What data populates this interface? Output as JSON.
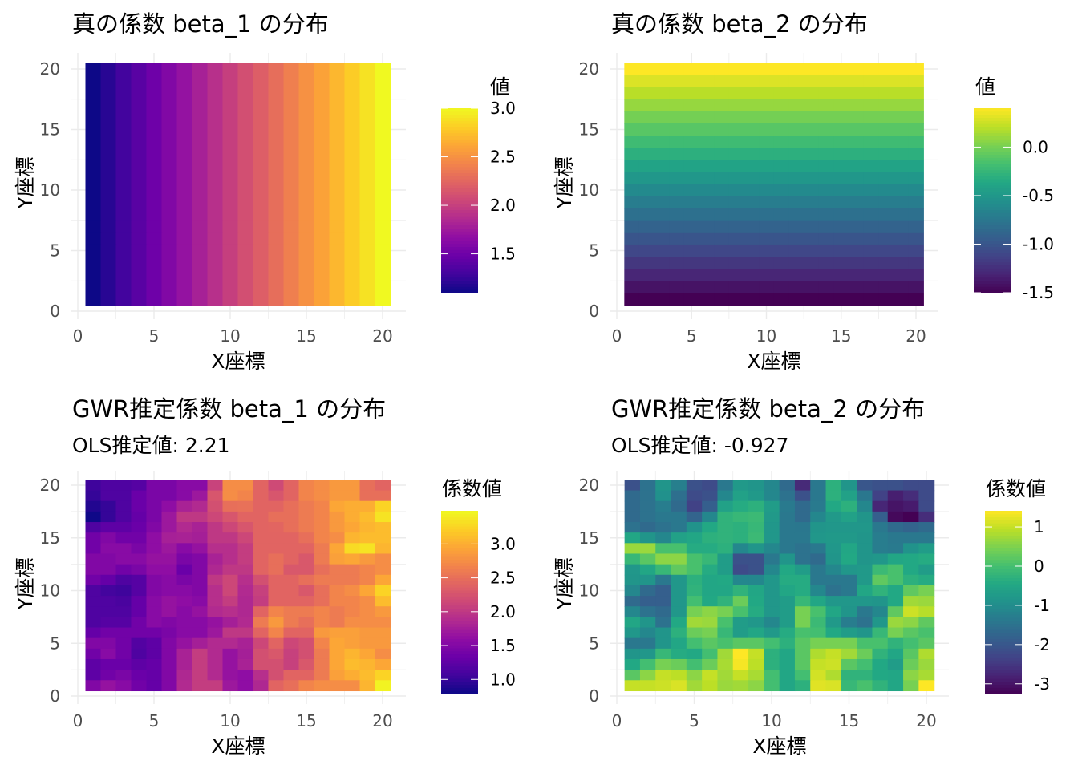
{
  "chart_data": [
    {
      "type": "heatmap",
      "title": "真の係数 beta_1 の分布",
      "xlabel": "X座標",
      "ylabel": "Y座標",
      "xticks": [
        0,
        5,
        10,
        15,
        20
      ],
      "yticks": [
        0,
        5,
        10,
        15,
        20
      ],
      "xlim": [
        0,
        20
      ],
      "ylim": [
        0,
        20
      ],
      "legend_title": "値",
      "legend_ticks": [
        1.5,
        2.0,
        2.5,
        3.0
      ],
      "legend_tick_labels": [
        "1.5",
        "2.0",
        "2.5",
        "3.0"
      ],
      "colormap": "plasma",
      "color_range": [
        1.1,
        3.0
      ],
      "x": [
        1,
        2,
        3,
        4,
        5,
        6,
        7,
        8,
        9,
        10,
        11,
        12,
        13,
        14,
        15,
        16,
        17,
        18,
        19,
        20
      ],
      "y": [
        20,
        19,
        18,
        17,
        16,
        15,
        14,
        13,
        12,
        11,
        10,
        9,
        8,
        7,
        6,
        5,
        4,
        3,
        2,
        1
      ],
      "z_by_x": [
        1.1,
        1.2,
        1.3,
        1.4,
        1.5,
        1.6,
        1.7,
        1.8,
        1.9,
        2.0,
        2.1,
        2.2,
        2.3,
        2.4,
        2.5,
        2.6,
        2.7,
        2.8,
        2.9,
        3.0
      ],
      "grid": true,
      "legend": "right"
    },
    {
      "type": "heatmap",
      "title": "真の係数 beta_2 の分布",
      "xlabel": "X座標",
      "ylabel": "Y座標",
      "xticks": [
        0,
        5,
        10,
        15,
        20
      ],
      "yticks": [
        0,
        5,
        10,
        15,
        20
      ],
      "xlim": [
        0,
        20
      ],
      "ylim": [
        0,
        20
      ],
      "legend_title": "値",
      "legend_ticks": [
        -1.5,
        -1.0,
        -0.5,
        0.0
      ],
      "legend_tick_labels": [
        "-1.5",
        "-1.0",
        "-0.5",
        "0.0"
      ],
      "colormap": "viridis",
      "color_range": [
        -1.5,
        0.4
      ],
      "x": [
        1,
        2,
        3,
        4,
        5,
        6,
        7,
        8,
        9,
        10,
        11,
        12,
        13,
        14,
        15,
        16,
        17,
        18,
        19,
        20
      ],
      "y": [
        20,
        19,
        18,
        17,
        16,
        15,
        14,
        13,
        12,
        11,
        10,
        9,
        8,
        7,
        6,
        5,
        4,
        3,
        2,
        1
      ],
      "z_by_y": [
        -1.5,
        -1.4,
        -1.3,
        -1.2,
        -1.1,
        -1.0,
        -0.9,
        -0.8,
        -0.7,
        -0.6,
        -0.5,
        -0.4,
        -0.3,
        -0.2,
        -0.1,
        0.0,
        0.1,
        0.2,
        0.3,
        0.4
      ],
      "grid": true,
      "legend": "right"
    },
    {
      "type": "heatmap",
      "title": "GWR推定係数 beta_1 の分布",
      "subtitle": "OLS推定値: 2.21",
      "xlabel": "X座標",
      "ylabel": "Y座標",
      "xticks": [
        0,
        5,
        10,
        15,
        20
      ],
      "yticks": [
        0,
        5,
        10,
        15,
        20
      ],
      "xlim": [
        0,
        20
      ],
      "ylim": [
        0,
        20
      ],
      "legend_title": "係数値",
      "legend_ticks": [
        1.0,
        1.5,
        2.0,
        2.5,
        3.0
      ],
      "legend_tick_labels": [
        "1.0",
        "1.5",
        "2.0",
        "2.5",
        "3.0"
      ],
      "colormap": "plasma",
      "color_range": [
        0.79,
        3.49
      ],
      "x": [
        1,
        2,
        3,
        4,
        5,
        6,
        7,
        8,
        9,
        10,
        11,
        12,
        13,
        14,
        15,
        16,
        17,
        18,
        19,
        20
      ],
      "y": [
        20,
        19,
        18,
        17,
        16,
        15,
        14,
        13,
        12,
        11,
        10,
        9,
        8,
        7,
        6,
        5,
        4,
        3,
        2,
        1
      ],
      "z": [
        [
          1.05,
          1.15,
          1.15,
          1.2,
          1.45,
          1.45,
          1.55,
          1.55,
          2.1,
          2.75,
          2.75,
          2.41,
          2.17,
          2.41,
          2.68,
          2.75,
          2.85,
          2.85,
          2.5,
          2.41
        ],
        [
          1.0,
          1.15,
          1.15,
          1.33,
          1.45,
          1.45,
          1.55,
          1.7,
          2.28,
          2.75,
          2.68,
          2.41,
          2.28,
          2.41,
          2.68,
          2.75,
          2.85,
          2.85,
          2.5,
          2.5
        ],
        [
          0.9,
          1.0,
          1.15,
          1.33,
          1.45,
          1.6,
          1.8,
          1.87,
          2.22,
          2.5,
          2.52,
          2.41,
          2.41,
          2.5,
          2.6,
          2.68,
          2.95,
          3.0,
          3.0,
          3.25
        ],
        [
          0.8,
          1.0,
          1.15,
          1.3,
          1.45,
          1.7,
          2.0,
          2.0,
          2.14,
          2.28,
          2.41,
          2.41,
          2.5,
          2.5,
          2.6,
          2.68,
          2.85,
          3.0,
          3.1,
          3.35
        ],
        [
          1.15,
          1.25,
          1.25,
          1.33,
          1.5,
          1.7,
          1.87,
          1.8,
          2.0,
          2.14,
          2.28,
          2.41,
          2.42,
          2.5,
          2.6,
          2.68,
          2.85,
          2.95,
          3.05,
          3.1
        ],
        [
          1.38,
          1.5,
          1.38,
          1.38,
          1.6,
          1.78,
          1.8,
          1.77,
          2.0,
          2.0,
          2.14,
          2.41,
          2.41,
          2.41,
          2.5,
          2.68,
          2.75,
          3.05,
          3.1,
          3.1
        ],
        [
          1.38,
          1.55,
          1.55,
          1.45,
          1.6,
          1.7,
          1.55,
          1.65,
          1.92,
          1.92,
          2.05,
          2.41,
          2.41,
          2.41,
          2.41,
          2.6,
          2.95,
          3.3,
          3.35,
          3.05
        ],
        [
          1.5,
          1.5,
          1.55,
          1.55,
          1.65,
          1.65,
          1.45,
          1.5,
          1.8,
          1.92,
          2.05,
          2.41,
          2.5,
          2.41,
          2.3,
          2.6,
          2.9,
          2.95,
          2.85,
          2.75
        ],
        [
          1.5,
          1.5,
          1.38,
          1.45,
          1.6,
          1.6,
          1.33,
          1.5,
          1.85,
          2.0,
          2.0,
          2.41,
          2.5,
          2.3,
          2.3,
          2.5,
          2.6,
          2.6,
          2.68,
          2.75
        ],
        [
          1.38,
          1.3,
          1.15,
          1.2,
          1.5,
          1.55,
          1.45,
          1.5,
          2.0,
          2.14,
          1.92,
          2.22,
          2.41,
          2.41,
          2.5,
          2.6,
          2.6,
          2.6,
          2.68,
          2.95
        ],
        [
          1.15,
          1.08,
          1.05,
          1.2,
          1.5,
          1.55,
          1.55,
          1.5,
          1.92,
          2.14,
          1.87,
          2.08,
          2.41,
          2.41,
          2.3,
          2.5,
          2.68,
          2.75,
          2.95,
          3.25
        ],
        [
          1.15,
          1.15,
          1.12,
          1.3,
          1.55,
          1.65,
          1.6,
          1.55,
          1.92,
          2.05,
          1.85,
          2.05,
          2.41,
          2.41,
          2.41,
          2.5,
          2.68,
          2.68,
          2.75,
          3.1
        ],
        [
          1.15,
          1.15,
          1.15,
          1.3,
          1.55,
          1.65,
          1.55,
          1.65,
          1.87,
          1.92,
          1.85,
          2.41,
          2.68,
          2.6,
          2.6,
          2.68,
          2.6,
          2.68,
          2.75,
          2.85
        ],
        [
          1.15,
          1.2,
          1.2,
          1.38,
          1.55,
          1.5,
          1.55,
          1.55,
          1.65,
          1.77,
          1.87,
          2.6,
          2.85,
          2.6,
          2.5,
          2.68,
          2.6,
          2.75,
          2.75,
          2.75
        ],
        [
          1.3,
          1.38,
          1.38,
          1.38,
          1.38,
          1.45,
          1.55,
          1.55,
          1.7,
          2.0,
          2.0,
          2.41,
          2.68,
          2.41,
          2.41,
          2.85,
          2.9,
          2.9,
          2.85,
          2.85
        ],
        [
          1.5,
          1.5,
          1.38,
          1.18,
          1.25,
          1.5,
          1.65,
          1.77,
          1.87,
          1.87,
          1.8,
          2.14,
          2.41,
          2.14,
          2.22,
          2.68,
          2.95,
          2.9,
          2.85,
          2.85
        ],
        [
          1.38,
          1.55,
          1.38,
          1.15,
          1.25,
          1.5,
          1.8,
          2.05,
          1.87,
          1.65,
          1.77,
          2.22,
          2.3,
          2.08,
          2.22,
          2.6,
          2.95,
          3.05,
          2.95,
          2.75
        ],
        [
          1.25,
          1.33,
          1.33,
          1.25,
          1.3,
          1.5,
          1.8,
          2.05,
          1.87,
          1.65,
          1.8,
          2.22,
          2.22,
          2.08,
          2.3,
          2.6,
          2.95,
          3.1,
          3.05,
          2.95
        ],
        [
          1.25,
          1.38,
          1.45,
          1.33,
          1.3,
          1.5,
          1.85,
          2.05,
          1.87,
          1.65,
          1.6,
          1.92,
          2.22,
          2.41,
          2.41,
          2.6,
          2.9,
          3.0,
          3.1,
          3.25
        ],
        [
          1.5,
          1.65,
          1.55,
          1.38,
          1.3,
          1.5,
          1.87,
          2.05,
          2.05,
          1.7,
          1.6,
          1.85,
          2.41,
          2.5,
          2.68,
          2.75,
          2.75,
          2.75,
          3.05,
          3.45
        ]
      ],
      "grid": true,
      "legend": "right"
    },
    {
      "type": "heatmap",
      "title": "GWR推定係数 beta_2 の分布",
      "subtitle": "OLS推定値: -0.927",
      "xlabel": "X座標",
      "ylabel": "Y座標",
      "xticks": [
        0,
        5,
        10,
        15,
        20
      ],
      "yticks": [
        0,
        5,
        10,
        15,
        20
      ],
      "xlim": [
        0,
        20
      ],
      "ylim": [
        0,
        20
      ],
      "legend_title": "係数値",
      "legend_ticks": [
        -3,
        -2,
        -1,
        0,
        1
      ],
      "legend_tick_labels": [
        "-3",
        "-2",
        "-1",
        "0",
        "1"
      ],
      "colormap": "viridis",
      "color_range": [
        -3.25,
        1.41
      ],
      "x": [
        1,
        2,
        3,
        4,
        5,
        6,
        7,
        8,
        9,
        10,
        11,
        12,
        13,
        14,
        15,
        16,
        17,
        18,
        19,
        20
      ],
      "y": [
        20,
        19,
        18,
        17,
        16,
        15,
        14,
        13,
        12,
        11,
        10,
        9,
        8,
        7,
        6,
        5,
        4,
        3,
        2,
        1
      ],
      "z": [
        [
          -2.1,
          -1.5,
          -0.83,
          -1.25,
          -2.1,
          -2.2,
          -1.39,
          -0.75,
          -0.83,
          -1.1,
          -1.65,
          -2.7,
          -1.39,
          -0.3,
          -0.83,
          -2.0,
          -2.1,
          -2.1,
          -2.2,
          -2.2
        ],
        [
          -1.65,
          -1.5,
          -0.92,
          -1.55,
          -2.2,
          -2.1,
          -1.1,
          -0.6,
          -0.75,
          -1.1,
          -1.5,
          -2.1,
          -1.39,
          -0.3,
          -0.6,
          -1.4,
          -2.35,
          -2.85,
          -2.65,
          -2.2
        ],
        [
          -1.65,
          -1.5,
          -1.3,
          -1.65,
          -2.35,
          -1.85,
          -0.6,
          -0.4,
          -0.3,
          -0.7,
          -1.35,
          -1.65,
          -1.35,
          -0.45,
          -0.3,
          -1.1,
          -2.75,
          -3.0,
          -2.9,
          -2.2
        ],
        [
          -1.65,
          -1.5,
          -1.39,
          -1.39,
          -1.75,
          -1.1,
          -0.25,
          -0.15,
          -0.1,
          -0.75,
          -1.39,
          -1.65,
          -1.1,
          -0.75,
          -0.6,
          -0.83,
          -1.85,
          -3.15,
          -3.25,
          -2.65
        ],
        [
          -1.5,
          -1.65,
          -1.5,
          -1.39,
          -0.88,
          -0.45,
          -0.25,
          -0.3,
          -0.15,
          -0.8,
          -1.39,
          -1.4,
          -0.83,
          -0.8,
          -0.8,
          -0.8,
          -1.39,
          -1.65,
          -1.75,
          -1.65
        ],
        [
          -0.5,
          -0.83,
          -1.1,
          -0.6,
          -0.5,
          -0.3,
          -0.25,
          -0.3,
          -0.1,
          -0.8,
          -1.39,
          -1.39,
          -0.8,
          -0.75,
          -0.75,
          -0.83,
          -1.3,
          -1.39,
          -1.39,
          -1.39
        ],
        [
          0.7,
          0.7,
          0.05,
          0.05,
          -0.4,
          -0.4,
          -0.3,
          -1.1,
          -0.83,
          -1.1,
          -1.39,
          -1.5,
          -1.39,
          -0.8,
          -0.5,
          -0.83,
          -1.3,
          -1.35,
          -0.88,
          -0.7
        ],
        [
          -0.15,
          0.2,
          0.6,
          0.6,
          0.05,
          -0.15,
          -0.7,
          -2.1,
          -2.1,
          -1.39,
          -0.83,
          -1.5,
          -1.65,
          -0.83,
          -0.45,
          -0.83,
          -0.8,
          -0.5,
          -0.45,
          -0.4
        ],
        [
          -0.8,
          -0.5,
          -0.15,
          0.25,
          0.05,
          -0.4,
          -0.7,
          -2.2,
          -2.1,
          -1.1,
          -0.45,
          -0.7,
          -1.39,
          -1.1,
          -0.8,
          -0.75,
          -0.1,
          0.05,
          -0.45,
          -0.7
        ],
        [
          -0.83,
          -0.83,
          -1.39,
          -0.8,
          -0.3,
          -0.5,
          -0.45,
          -1.1,
          -1.1,
          -0.8,
          -0.4,
          -0.4,
          -1.39,
          -1.39,
          -1.39,
          -0.75,
          0.25,
          0.05,
          -0.3,
          -0.4
        ],
        [
          -1.1,
          -1.65,
          -1.85,
          -0.8,
          -0.25,
          -0.5,
          -0.5,
          -0.25,
          -0.5,
          -0.8,
          -0.5,
          -0.4,
          -1.1,
          -1.5,
          -1.39,
          -0.5,
          -0.25,
          -0.45,
          0.25,
          0.45
        ],
        [
          -1.65,
          -1.85,
          -1.85,
          -0.8,
          0.0,
          -0.45,
          -0.25,
          0.35,
          -0.45,
          -0.8,
          -0.7,
          -0.15,
          -0.5,
          -0.8,
          -0.8,
          -0.8,
          -0.83,
          -0.45,
          0.75,
          0.7
        ],
        [
          -1.1,
          -1.5,
          -1.65,
          -0.8,
          0.45,
          0.6,
          0.45,
          0.05,
          -0.4,
          -0.8,
          -0.7,
          0.45,
          0.05,
          -0.5,
          -0.83,
          -1.39,
          -1.1,
          0.25,
          1.05,
          0.9
        ],
        [
          -0.5,
          -0.83,
          -1.5,
          -0.45,
          0.75,
          0.7,
          0.05,
          -0.7,
          -0.8,
          -1.1,
          -0.7,
          0.45,
          -0.1,
          -0.75,
          -1.3,
          -1.5,
          -0.8,
          0.7,
          0.6,
          0.25
        ],
        [
          -0.8,
          -1.1,
          -0.83,
          -0.3,
          0.35,
          0.45,
          -0.15,
          -0.7,
          -0.5,
          -0.75,
          -0.4,
          0.05,
          0.0,
          -0.45,
          -0.7,
          -0.83,
          -0.15,
          0.45,
          0.2,
          0.05
        ],
        [
          -1.39,
          -1.39,
          -0.83,
          -0.5,
          0.0,
          0.2,
          0.05,
          0.2,
          0.2,
          0.0,
          -0.3,
          0.2,
          0.45,
          0.45,
          0.45,
          0.05,
          0.05,
          -0.25,
          0.0,
          0.2
        ],
        [
          -0.83,
          -0.8,
          -0.15,
          -0.4,
          -0.45,
          0.0,
          0.75,
          1.41,
          1.0,
          -0.3,
          -0.5,
          0.2,
          0.85,
          1.0,
          0.75,
          0.35,
          -0.25,
          -0.5,
          0.2,
          0.85
        ],
        [
          -0.45,
          0.0,
          0.45,
          0.35,
          0.0,
          0.35,
          0.8,
          1.35,
          0.94,
          -0.3,
          -0.5,
          0.2,
          1.0,
          1.05,
          0.2,
          0.0,
          -0.45,
          -0.7,
          0.35,
          0.7
        ],
        [
          0.2,
          0.6,
          1.0,
          0.94,
          0.6,
          1.0,
          0.75,
          1.0,
          0.8,
          0.0,
          -0.5,
          0.0,
          1.1,
          0.85,
          -0.25,
          -0.25,
          -0.45,
          -0.5,
          0.6,
          0.8
        ],
        [
          1.0,
          1.0,
          1.05,
          1.15,
          0.75,
          0.94,
          0.7,
          0.75,
          0.6,
          0.0,
          -0.5,
          -0.3,
          1.2,
          1.15,
          -0.15,
          0.05,
          -0.25,
          -0.5,
          0.45,
          1.41
        ]
      ],
      "grid": true,
      "legend": "right"
    }
  ]
}
